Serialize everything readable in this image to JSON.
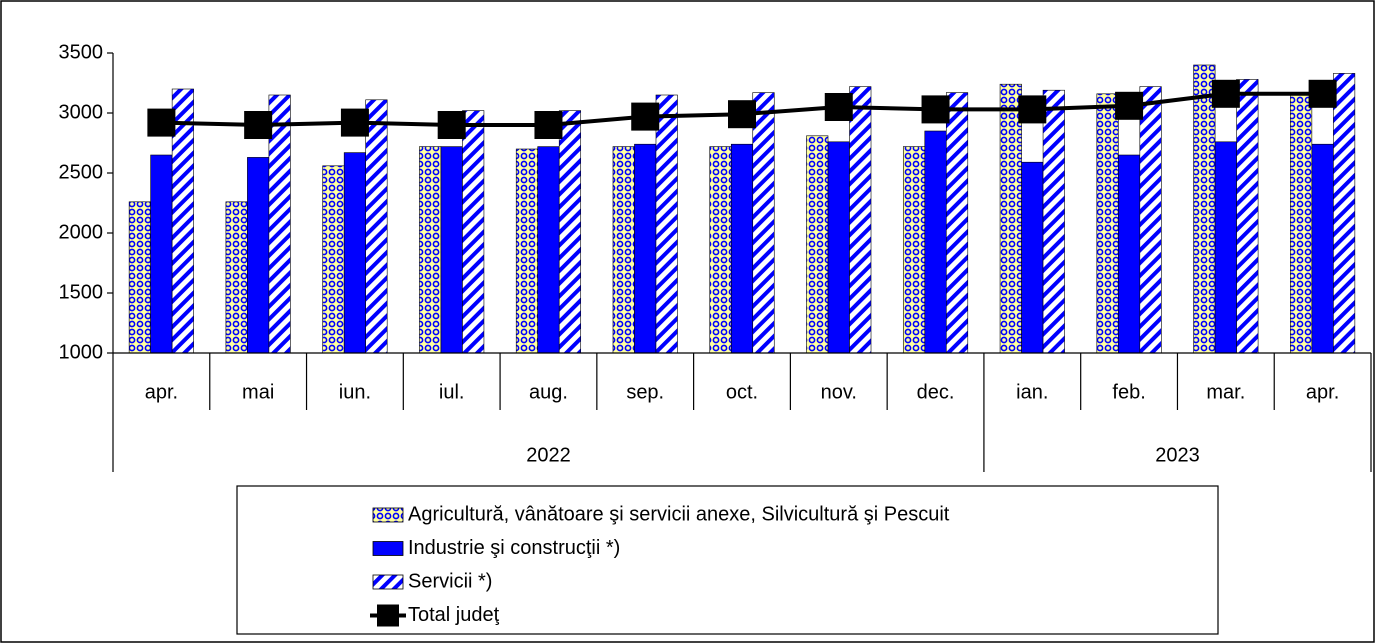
{
  "chart_data": {
    "type": "bar_line",
    "categories": [
      "apr.",
      "mai",
      "iun.",
      "iul.",
      "aug.",
      "sep.",
      "oct.",
      "nov.",
      "dec.",
      "ian.",
      "feb.",
      "mar.",
      "apr."
    ],
    "year_groups": [
      {
        "label": "2022",
        "count": 9
      },
      {
        "label": "2023",
        "count": 4
      }
    ],
    "series": [
      {
        "name": "Agricultură, vânătoare şi servicii anexe, Silvicultură şi Pescuit",
        "kind": "bar",
        "color": "#0000ff",
        "fill": "#ffffa0",
        "values": [
          2260,
          2260,
          2560,
          2720,
          2700,
          2720,
          2720,
          2810,
          2720,
          3240,
          3160,
          3400,
          3170
        ]
      },
      {
        "name": "Industrie şi construcţii *)",
        "kind": "bar",
        "color": "#0000ff",
        "values": [
          2650,
          2630,
          2670,
          2720,
          2720,
          2740,
          2740,
          2760,
          2850,
          2590,
          2650,
          2760,
          2740
        ]
      },
      {
        "name": "Servicii *)",
        "kind": "bar",
        "color": "#0000ff",
        "values": [
          3200,
          3150,
          3110,
          3020,
          3020,
          3150,
          3170,
          3220,
          3170,
          3190,
          3220,
          3280,
          3330
        ]
      },
      {
        "name": "Total judeţ",
        "kind": "line",
        "color": "#000000",
        "values": [
          2920,
          2900,
          2920,
          2900,
          2900,
          2970,
          2990,
          3050,
          3030,
          3030,
          3060,
          3160,
          3160
        ]
      }
    ],
    "ylim": [
      1000,
      3500
    ],
    "yticks": [
      1000,
      1500,
      2000,
      2500,
      3000,
      3500
    ],
    "grid": false,
    "legend": "bottom"
  }
}
